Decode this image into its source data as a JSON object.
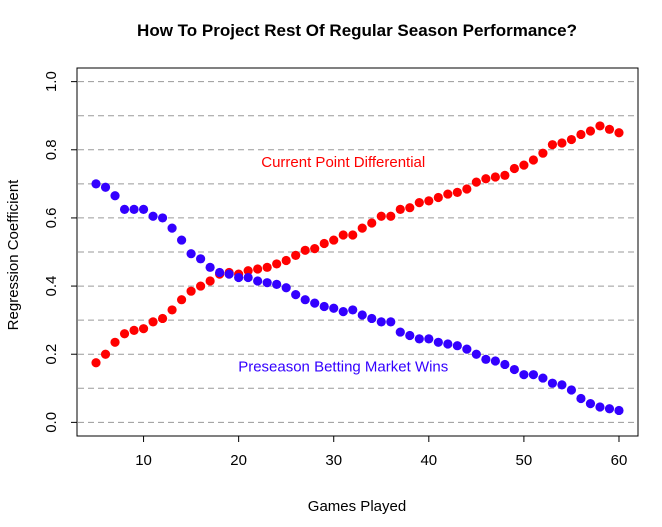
{
  "chart_data": {
    "type": "scatter",
    "title": "How To Project Rest Of Regular Season Performance?",
    "xlabel": "Games Played",
    "ylabel": "Regression Coefficient",
    "xlim": [
      3,
      62
    ],
    "ylim": [
      -0.04,
      1.04
    ],
    "x_ticks": [
      10,
      20,
      30,
      40,
      50,
      60
    ],
    "y_ticks": [
      0.0,
      0.2,
      0.4,
      0.6,
      0.8,
      1.0
    ],
    "y_tick_labels": [
      "0.0",
      "0.2",
      "0.4",
      "0.6",
      "0.8",
      "1.0"
    ],
    "gridlines_y": [
      0.0,
      0.1,
      0.2,
      0.3,
      0.4,
      0.5,
      0.6,
      0.7,
      0.8,
      0.9,
      1.0
    ],
    "grid": "horizontal dashed",
    "legend": "none",
    "x": [
      5,
      6,
      7,
      8,
      9,
      10,
      11,
      12,
      13,
      14,
      15,
      16,
      17,
      18,
      19,
      20,
      21,
      22,
      23,
      24,
      25,
      26,
      27,
      28,
      29,
      30,
      31,
      32,
      33,
      34,
      35,
      36,
      37,
      38,
      39,
      40,
      41,
      42,
      43,
      44,
      45,
      46,
      47,
      48,
      49,
      50,
      51,
      52,
      53,
      54,
      55,
      56,
      57,
      58,
      59,
      60
    ],
    "series": [
      {
        "name": "Current Point Differential",
        "color": "#ff0000",
        "values": [
          0.175,
          0.2,
          0.235,
          0.26,
          0.27,
          0.275,
          0.295,
          0.305,
          0.33,
          0.36,
          0.385,
          0.4,
          0.415,
          0.435,
          0.44,
          0.435,
          0.445,
          0.45,
          0.455,
          0.465,
          0.475,
          0.49,
          0.505,
          0.51,
          0.525,
          0.535,
          0.55,
          0.55,
          0.57,
          0.585,
          0.605,
          0.605,
          0.625,
          0.63,
          0.645,
          0.65,
          0.66,
          0.67,
          0.675,
          0.685,
          0.705,
          0.715,
          0.72,
          0.725,
          0.745,
          0.755,
          0.77,
          0.79,
          0.815,
          0.82,
          0.83,
          0.845,
          0.855,
          0.87,
          0.86,
          0.85
        ]
      },
      {
        "name": "Preseason Betting Market Wins",
        "color": "#3300ff",
        "values": [
          0.7,
          0.69,
          0.665,
          0.625,
          0.625,
          0.625,
          0.605,
          0.6,
          0.57,
          0.535,
          0.495,
          0.48,
          0.455,
          0.44,
          0.435,
          0.425,
          0.425,
          0.415,
          0.41,
          0.405,
          0.395,
          0.375,
          0.36,
          0.35,
          0.34,
          0.335,
          0.325,
          0.33,
          0.315,
          0.305,
          0.295,
          0.295,
          0.265,
          0.255,
          0.245,
          0.245,
          0.235,
          0.23,
          0.225,
          0.215,
          0.2,
          0.185,
          0.18,
          0.17,
          0.155,
          0.14,
          0.14,
          0.13,
          0.115,
          0.11,
          0.095,
          0.07,
          0.055,
          0.045,
          0.04,
          0.035
        ]
      }
    ],
    "annotations": [
      {
        "text": "Current Point Differential",
        "x": 31,
        "y": 0.75,
        "color": "#ff0000"
      },
      {
        "text": "Preseason Betting Market Wins",
        "x": 31,
        "y": 0.15,
        "color": "#3300ff"
      }
    ]
  }
}
